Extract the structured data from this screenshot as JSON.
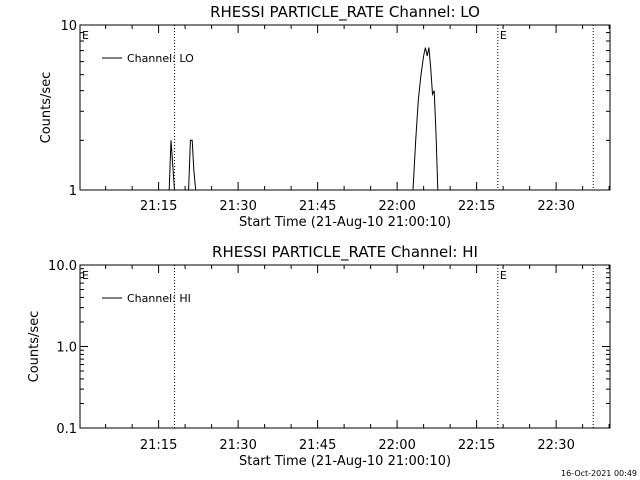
{
  "chart_data": [
    {
      "type": "line",
      "title": "RHESSI PARTICLE_RATE Channel: LO",
      "xlabel": "Start Time (21-Aug-10 21:00:10)",
      "ylabel": "Counts/sec",
      "yscale": "log",
      "ylim": [
        1,
        10
      ],
      "y_ticks": [
        "1",
        "10"
      ],
      "xlim": [
        "21:00:10",
        "22:40:10"
      ],
      "x_ticks": [
        "21:15",
        "21:30",
        "21:45",
        "22:00",
        "22:15",
        "22:30"
      ],
      "grid": false,
      "legend_position": "top-left",
      "legend": "Channel: LO",
      "markers": [
        {
          "label": "E",
          "time": "21:00:10",
          "line": false
        },
        {
          "label": "",
          "time": "21:18:00",
          "line": true
        },
        {
          "label": "E",
          "time": "22:19:00",
          "line": true
        },
        {
          "label": "",
          "time": "22:37:00",
          "line": true
        }
      ],
      "series": [
        {
          "name": "Channel: LO",
          "x": [
            "21:17:00",
            "21:17:20",
            "21:17:40",
            "21:18:00",
            "21:20:40",
            "21:21:00",
            "21:21:20",
            "21:21:40",
            "21:22:00",
            "22:03:00",
            "22:03:30",
            "22:04:00",
            "22:04:30",
            "22:05:00",
            "22:05:20",
            "22:05:40",
            "22:06:00",
            "22:06:20",
            "22:06:40",
            "22:07:00",
            "22:07:20",
            "22:07:40"
          ],
          "y": [
            1,
            2.0,
            1.4,
            1,
            1,
            2.0,
            2.0,
            1.3,
            1,
            1,
            2.0,
            3.5,
            5.0,
            6.5,
            7.3,
            6.5,
            7.3,
            5.5,
            3.8,
            4.0,
            2.2,
            1
          ]
        }
      ]
    },
    {
      "type": "line",
      "title": "RHESSI PARTICLE_RATE Channel: HI",
      "xlabel": "Start Time (21-Aug-10 21:00:10)",
      "ylabel": "Counts/sec",
      "yscale": "log",
      "ylim": [
        0.1,
        10
      ],
      "y_ticks": [
        "0.1",
        "1.0",
        "10.0"
      ],
      "xlim": [
        "21:00:10",
        "22:40:10"
      ],
      "x_ticks": [
        "21:15",
        "21:30",
        "21:45",
        "22:00",
        "22:15",
        "22:30"
      ],
      "grid": false,
      "legend_position": "top-left",
      "legend": "Channel: HI",
      "markers": [
        {
          "label": "E",
          "time": "21:00:10",
          "line": false
        },
        {
          "label": "",
          "time": "21:18:00",
          "line": true
        },
        {
          "label": "E",
          "time": "22:19:00",
          "line": true
        },
        {
          "label": "",
          "time": "22:37:00",
          "line": true
        }
      ],
      "series": [
        {
          "name": "Channel: HI",
          "x": [],
          "y": []
        }
      ]
    }
  ],
  "footer": {
    "timestamp": "16-Oct-2021 00:49"
  }
}
